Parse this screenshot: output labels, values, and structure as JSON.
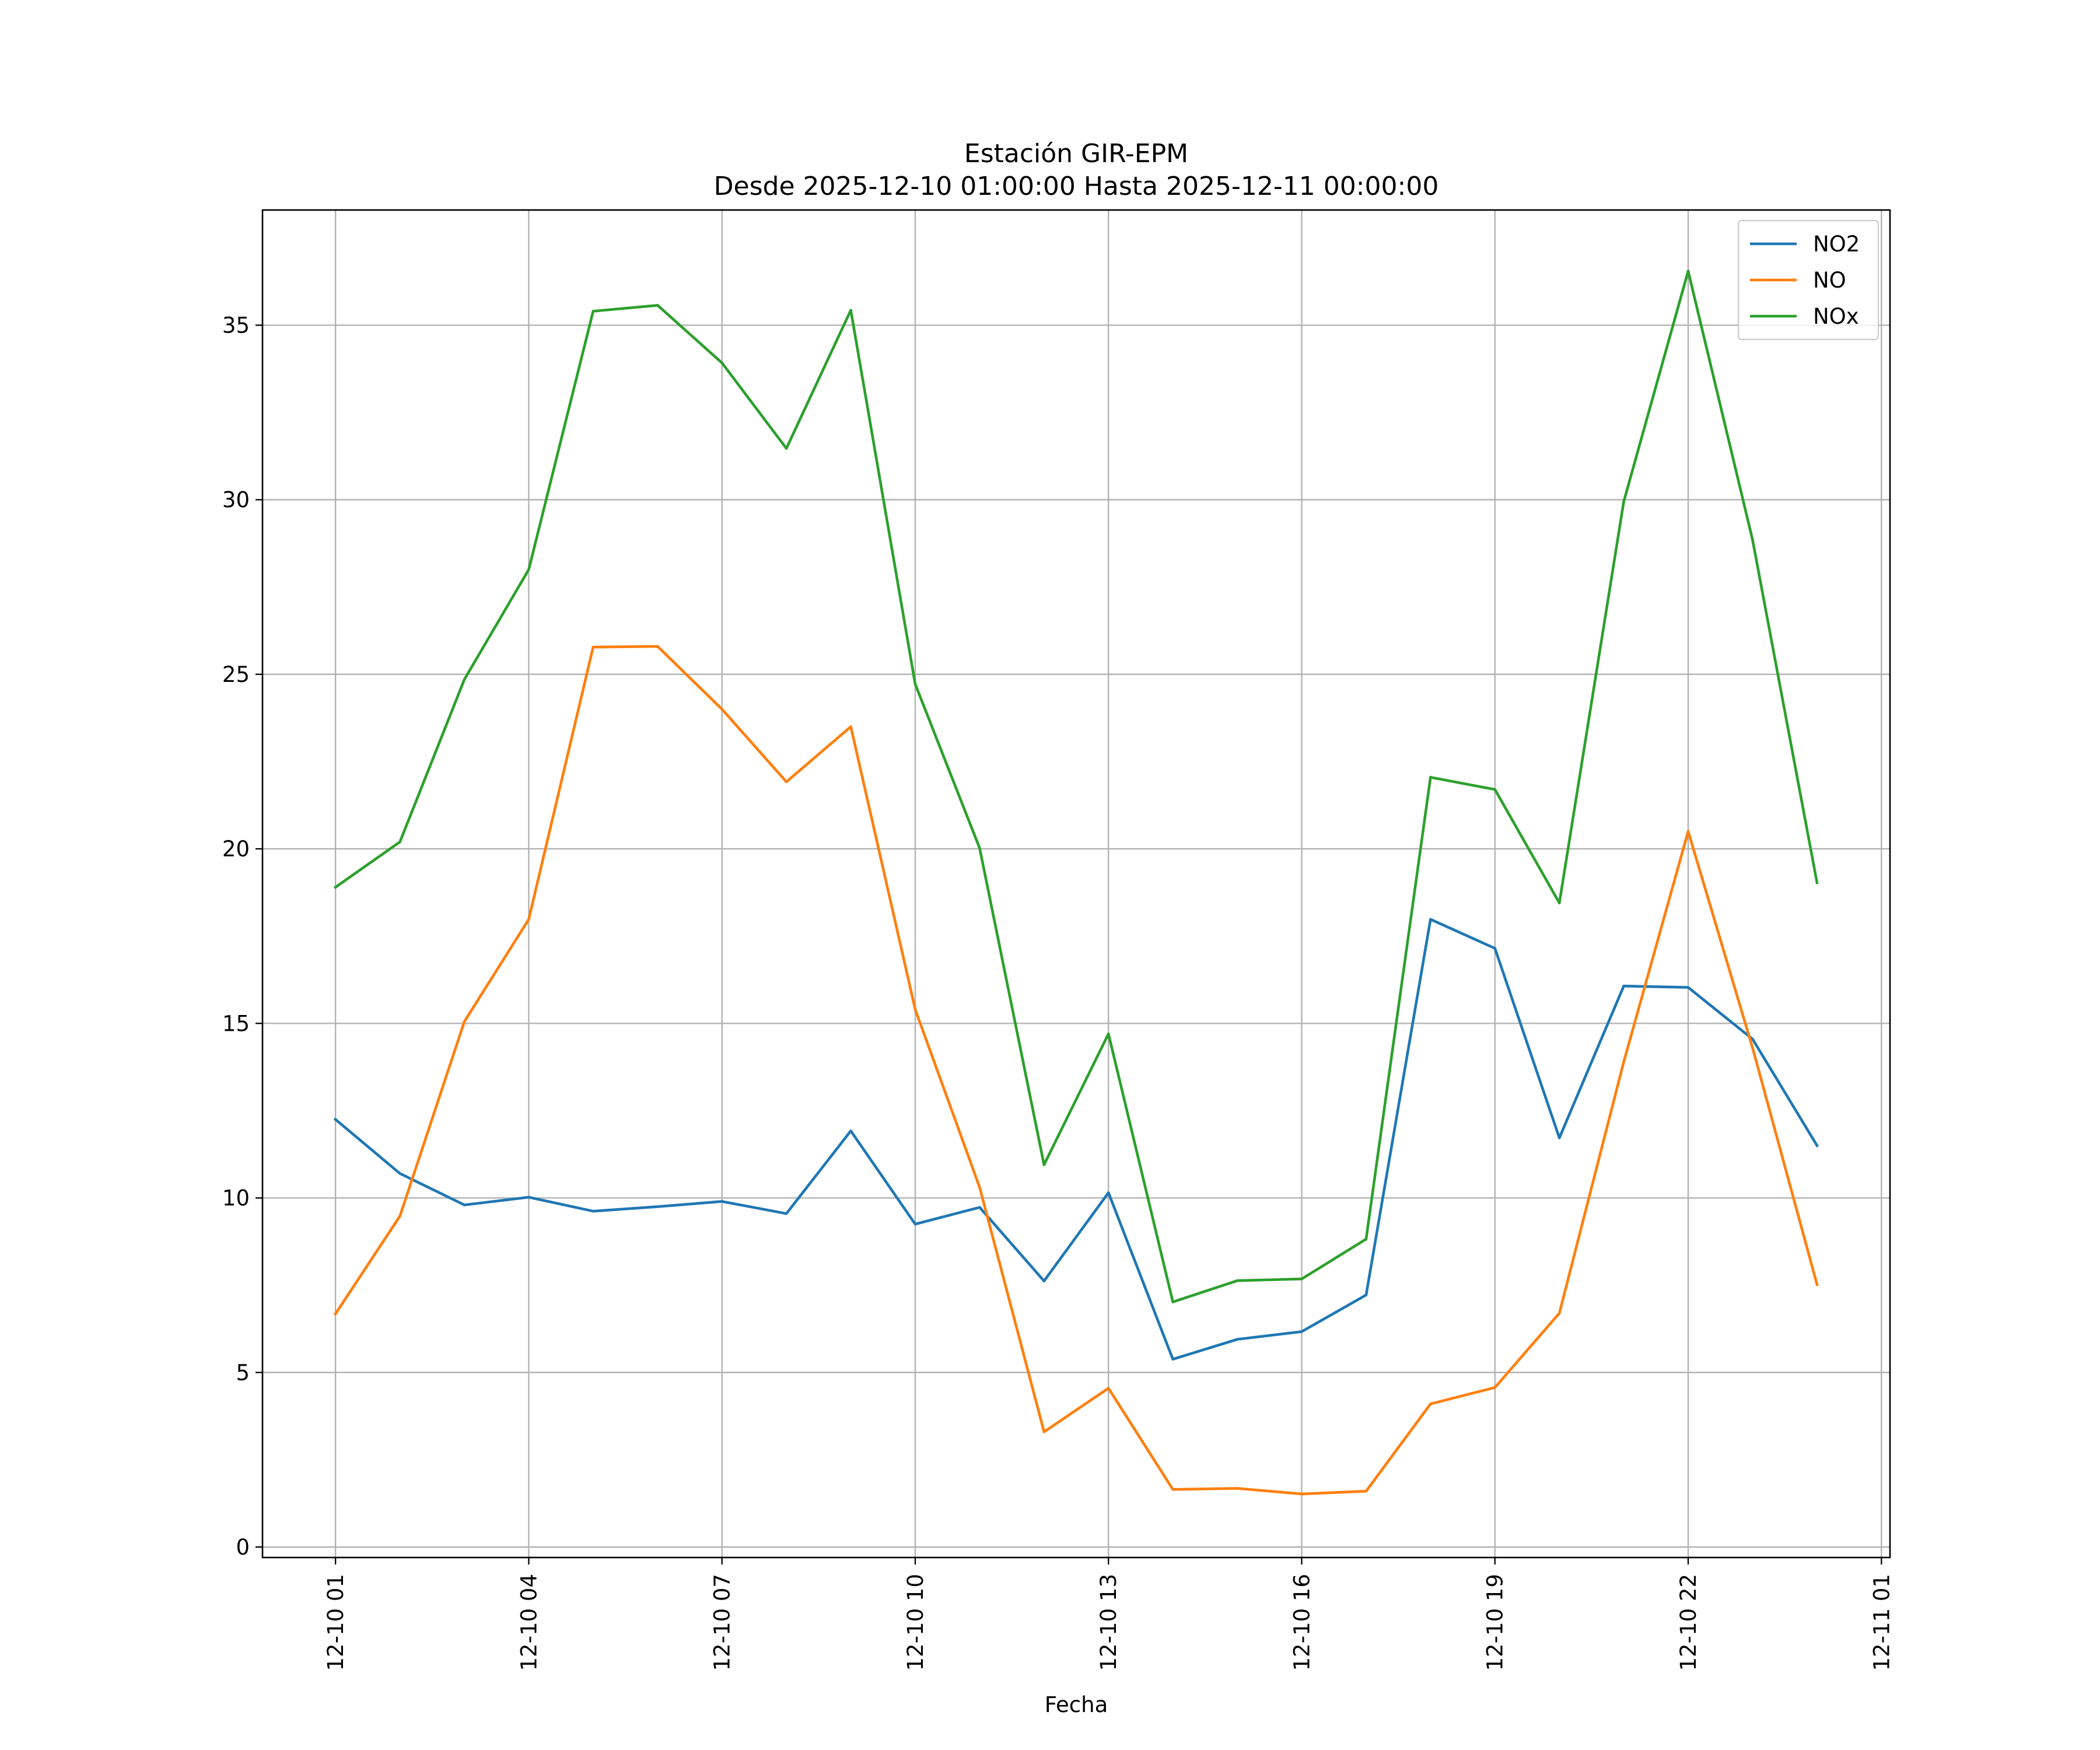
{
  "chart_data": {
    "type": "line",
    "title": "Estación GIR-EPM",
    "subtitle": "Desde 2025-12-10 01:00:00 Hasta 2025-12-11 00:00:00",
    "xlabel": "Fecha",
    "ylabel": "",
    "x": [
      "2025-12-10 01:00",
      "2025-12-10 02:00",
      "2025-12-10 03:00",
      "2025-12-10 04:00",
      "2025-12-10 05:00",
      "2025-12-10 06:00",
      "2025-12-10 07:00",
      "2025-12-10 08:00",
      "2025-12-10 09:00",
      "2025-12-10 10:00",
      "2025-12-10 11:00",
      "2025-12-10 12:00",
      "2025-12-10 13:00",
      "2025-12-10 14:00",
      "2025-12-10 15:00",
      "2025-12-10 16:00",
      "2025-12-10 17:00",
      "2025-12-10 18:00",
      "2025-12-10 19:00",
      "2025-12-10 20:00",
      "2025-12-10 21:00",
      "2025-12-10 22:00",
      "2025-12-10 23:00",
      "2025-12-11 00:00"
    ],
    "x_ticks": [
      "12-10 01",
      "12-10 04",
      "12-10 07",
      "12-10 10",
      "12-10 13",
      "12-10 16",
      "12-10 19",
      "12-10 22",
      "12-11 01"
    ],
    "y_ticks": [
      "0",
      "5",
      "10",
      "15",
      "20",
      "25",
      "30",
      "35"
    ],
    "xlim": [
      "2025-12-09 23:52",
      "2025-12-11 01:08"
    ],
    "ylim": [
      -0.3,
      38.3
    ],
    "grid": true,
    "legend_position": "upper right",
    "series": [
      {
        "name": "NO2",
        "color": "#1f77b4",
        "values": [
          12.25,
          10.7,
          9.8,
          10.02,
          9.62,
          9.75,
          9.9,
          9.55,
          11.92,
          9.25,
          9.73,
          7.62,
          10.15,
          5.38,
          5.95,
          6.17,
          7.22,
          17.98,
          17.15,
          11.72,
          16.07,
          16.03,
          14.55,
          11.5
        ]
      },
      {
        "name": "NO",
        "color": "#ff7f0e",
        "values": [
          6.68,
          9.48,
          15.05,
          17.98,
          25.78,
          25.8,
          24.0,
          21.92,
          23.5,
          15.4,
          10.3,
          3.3,
          4.55,
          1.65,
          1.68,
          1.52,
          1.6,
          4.1,
          4.57,
          6.7,
          13.9,
          20.5,
          14.3,
          7.52
        ]
      },
      {
        "name": "NOx",
        "color": "#2ca02c",
        "values": [
          18.9,
          20.2,
          24.85,
          28.0,
          35.4,
          35.57,
          33.92,
          31.47,
          35.43,
          24.72,
          20.02,
          10.95,
          14.7,
          7.02,
          7.63,
          7.68,
          8.82,
          22.05,
          21.7,
          18.45,
          29.95,
          36.55,
          28.85,
          19.03
        ]
      }
    ]
  }
}
